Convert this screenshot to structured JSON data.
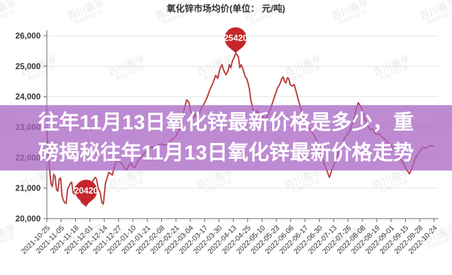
{
  "page": {
    "title": "氧化锌市场均价(单位： 元/吨)"
  },
  "watermark": {
    "line1": "百川盈孚",
    "line2": "BAIINFO"
  },
  "overlay": {
    "line1": "往年11月13日氧化锌最新价格是多少，重",
    "line2": "磅揭秘往年11月13日氧化锌最新价格走势",
    "bg_color": "rgba(168,100,195,0.75)",
    "text_color": "#ffffff"
  },
  "chart_data": {
    "type": "line",
    "title": "氧化锌市场均价(单位： 元/吨)",
    "unit": "元/吨",
    "ylim": [
      20000,
      26000
    ],
    "ytick_interval": 1000,
    "ytick_labels": [
      "26,000",
      "25,000",
      "24,000",
      "23,000",
      "22,000",
      "21,000",
      "20,000"
    ],
    "grid": true,
    "legend": "none",
    "categories": [
      "2021-10-25",
      "2021-11-05",
      "2021-11-18",
      "2021-12-01",
      "2021-12-14",
      "2021-12-27",
      "2022-01-10",
      "2022-01-21",
      "2022-02-08",
      "2022-02-21",
      "2022-03-04",
      "2022-03-17",
      "2022-03-30",
      "2022-04-13",
      "2022-04-25",
      "2022-05-10",
      "2022-05-23",
      "2022-06-06",
      "2022-06-17",
      "2022-06-30",
      "2022-07-13",
      "2022-07-26",
      "2022-08-08",
      "2022-08-19",
      "2022-09-01",
      "2022-09-15",
      "2022-09-28",
      "2022-10-24"
    ],
    "series": [
      {
        "name": "氧化锌市场均价",
        "color": "#b8403f",
        "values": [
          22800,
          20900,
          20420,
          21500,
          21800,
          22000,
          22300,
          22400,
          22300,
          22600,
          23900,
          23400,
          23800,
          24900,
          24300,
          24200,
          24650,
          23600,
          23000,
          22400,
          21400,
          22300,
          22800,
          23700,
          22900,
          22500,
          21500,
          22400
        ]
      }
    ],
    "annotations": {
      "max": {
        "label": "25420",
        "value": 25420
      },
      "min": {
        "label": "20420",
        "value": 20420
      }
    },
    "marker_color": "#c5262b",
    "grid_color": "#e2e2e2",
    "axis_color": "#666666",
    "label_color": "#333333",
    "trace": [
      [
        68,
        22900
      ],
      [
        70,
        22150
      ],
      [
        72,
        21600
      ],
      [
        74,
        21150
      ],
      [
        76,
        21050
      ],
      [
        78,
        21450
      ],
      [
        80,
        21380
      ],
      [
        82,
        20950
      ],
      [
        84,
        20900
      ],
      [
        86,
        21300
      ],
      [
        88,
        21330
      ],
      [
        90,
        20750
      ],
      [
        92,
        20600
      ],
      [
        94,
        20520
      ],
      [
        96,
        20500
      ],
      [
        98,
        20950
      ],
      [
        100,
        21050
      ],
      [
        102,
        21150
      ],
      [
        104,
        21200
      ],
      [
        106,
        20850
      ],
      [
        108,
        20800
      ],
      [
        110,
        21050
      ],
      [
        112,
        21080
      ],
      [
        114,
        20720
      ],
      [
        116,
        20700
      ],
      [
        118,
        20550
      ],
      [
        120,
        20500
      ],
      [
        123,
        20450
      ],
      [
        125,
        20420
      ],
      [
        128,
        20550
      ],
      [
        130,
        20620
      ],
      [
        133,
        21100
      ],
      [
        135,
        21250
      ],
      [
        138,
        21350
      ],
      [
        140,
        21300
      ],
      [
        143,
        20950
      ],
      [
        145,
        20900
      ],
      [
        148,
        20520
      ],
      [
        150,
        20480
      ],
      [
        153,
        21150
      ],
      [
        155,
        21300
      ],
      [
        158,
        21520
      ],
      [
        160,
        21480
      ],
      [
        163,
        21430
      ],
      [
        166,
        21700
      ],
      [
        170,
        21950
      ],
      [
        174,
        21850
      ],
      [
        178,
        21780
      ],
      [
        181,
        21650
      ],
      [
        184,
        21600
      ],
      [
        187,
        21750
      ],
      [
        190,
        21820
      ],
      [
        193,
        21700
      ],
      [
        196,
        21680
      ],
      [
        199,
        21850
      ],
      [
        202,
        21950
      ],
      [
        206,
        22050
      ],
      [
        210,
        22150
      ],
      [
        215,
        22250
      ],
      [
        220,
        22350
      ],
      [
        225,
        22300
      ],
      [
        230,
        22420
      ],
      [
        235,
        22450
      ],
      [
        240,
        22400
      ],
      [
        245,
        22500
      ],
      [
        250,
        22600
      ],
      [
        255,
        22700
      ],
      [
        260,
        22900
      ],
      [
        264,
        23300
      ],
      [
        268,
        23650
      ],
      [
        271,
        23900
      ],
      [
        274,
        23820
      ],
      [
        277,
        23500
      ],
      [
        280,
        23300
      ],
      [
        283,
        23420
      ],
      [
        286,
        23300
      ],
      [
        289,
        23450
      ],
      [
        292,
        23600
      ],
      [
        295,
        23720
      ],
      [
        298,
        23850
      ],
      [
        301,
        24000
      ],
      [
        304,
        24200
      ],
      [
        307,
        24350
      ],
      [
        310,
        24500
      ],
      [
        313,
        24700
      ],
      [
        316,
        24600
      ],
      [
        319,
        24900
      ],
      [
        322,
        25050
      ],
      [
        325,
        24850
      ],
      [
        328,
        24720
      ],
      [
        331,
        24850
      ],
      [
        333,
        25050
      ],
      [
        335,
        24950
      ],
      [
        337,
        25150
      ],
      [
        340,
        25300
      ],
      [
        342,
        25420
      ],
      [
        344,
        25380
      ],
      [
        346,
        25300
      ],
      [
        348,
        24950
      ],
      [
        350,
        25050
      ],
      [
        352,
        24950
      ],
      [
        354,
        24800
      ],
      [
        356,
        24650
      ],
      [
        358,
        24600
      ],
      [
        360,
        24450
      ],
      [
        362,
        24250
      ],
      [
        364,
        23900
      ],
      [
        366,
        23700
      ],
      [
        368,
        23500
      ],
      [
        370,
        23400
      ],
      [
        373,
        23550
      ],
      [
        376,
        23400
      ],
      [
        379,
        23300
      ],
      [
        382,
        23350
      ],
      [
        385,
        23250
      ],
      [
        388,
        23350
      ],
      [
        391,
        23500
      ],
      [
        394,
        23700
      ],
      [
        397,
        23900
      ],
      [
        400,
        24100
      ],
      [
        403,
        24300
      ],
      [
        406,
        24400
      ],
      [
        409,
        24600
      ],
      [
        411,
        24650
      ],
      [
        413,
        24500
      ],
      [
        415,
        24450
      ],
      [
        417,
        24620
      ],
      [
        419,
        24600
      ],
      [
        421,
        24400
      ],
      [
        424,
        24350
      ],
      [
        427,
        24400
      ],
      [
        430,
        24150
      ],
      [
        433,
        23900
      ],
      [
        436,
        23650
      ],
      [
        439,
        23400
      ],
      [
        442,
        23200
      ],
      [
        445,
        23100
      ],
      [
        448,
        23000
      ],
      [
        451,
        22900
      ],
      [
        454,
        22800
      ],
      [
        457,
        22700
      ],
      [
        460,
        22500
      ],
      [
        463,
        22300
      ],
      [
        466,
        22100
      ],
      [
        469,
        21900
      ],
      [
        472,
        21700
      ],
      [
        475,
        21550
      ],
      [
        478,
        21350
      ],
      [
        481,
        21550
      ],
      [
        484,
        21750
      ],
      [
        487,
        21900
      ],
      [
        490,
        22100
      ],
      [
        493,
        22300
      ],
      [
        496,
        22400
      ],
      [
        499,
        22600
      ],
      [
        502,
        22700
      ],
      [
        505,
        22800
      ],
      [
        508,
        22900
      ],
      [
        511,
        23100
      ],
      [
        514,
        23300
      ],
      [
        517,
        23600
      ],
      [
        520,
        23800
      ],
      [
        523,
        23700
      ],
      [
        526,
        23550
      ],
      [
        529,
        23300
      ],
      [
        532,
        23100
      ],
      [
        535,
        23000
      ],
      [
        538,
        22900
      ],
      [
        541,
        22950
      ],
      [
        544,
        22800
      ],
      [
        547,
        22750
      ],
      [
        550,
        22800
      ],
      [
        553,
        22700
      ],
      [
        556,
        22650
      ],
      [
        559,
        22600
      ],
      [
        562,
        22500
      ],
      [
        565,
        22450
      ],
      [
        568,
        22400
      ],
      [
        571,
        22300
      ],
      [
        574,
        22200
      ],
      [
        577,
        22100
      ],
      [
        580,
        22000
      ],
      [
        583,
        21900
      ],
      [
        586,
        21800
      ],
      [
        589,
        21650
      ],
      [
        592,
        21550
      ],
      [
        594,
        21470
      ],
      [
        597,
        21600
      ],
      [
        600,
        21800
      ],
      [
        603,
        22000
      ],
      [
        606,
        22100
      ],
      [
        609,
        22200
      ],
      [
        612,
        22300
      ],
      [
        615,
        22350
      ],
      [
        618,
        22300
      ],
      [
        621,
        22350
      ],
      [
        624,
        22400
      ],
      [
        627,
        22380
      ],
      [
        630,
        22400
      ]
    ]
  }
}
